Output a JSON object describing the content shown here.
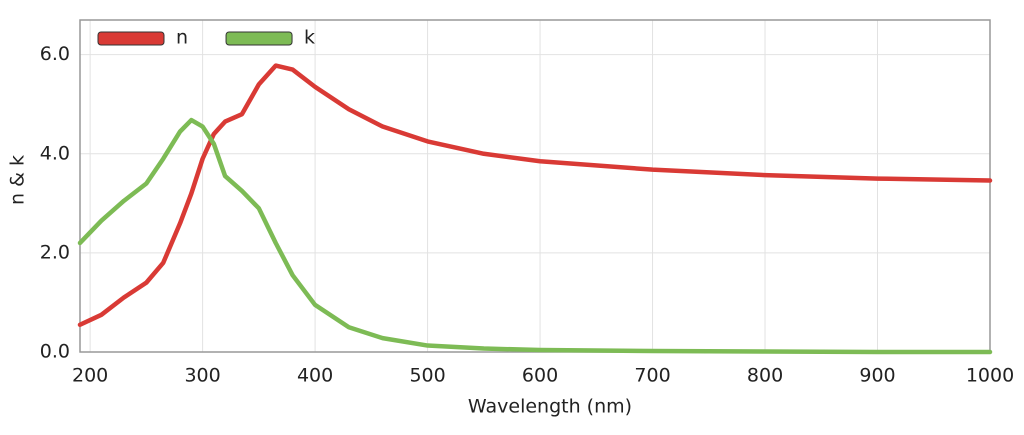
{
  "chart_data": {
    "type": "line",
    "x_label": "Wavelength (nm)",
    "y_label": "n & k",
    "x": [
      191,
      210,
      230,
      250,
      265,
      280,
      290,
      300,
      310,
      320,
      335,
      350,
      365,
      380,
      400,
      430,
      460,
      500,
      550,
      600,
      700,
      800,
      900,
      1000
    ],
    "series": [
      {
        "name": "n",
        "color": "#d93a35",
        "values": [
          0.55,
          0.75,
          1.1,
          1.4,
          1.8,
          2.6,
          3.2,
          3.9,
          4.4,
          4.65,
          4.8,
          5.4,
          5.78,
          5.7,
          5.35,
          4.9,
          4.55,
          4.25,
          4.0,
          3.85,
          3.68,
          3.57,
          3.5,
          3.46
        ]
      },
      {
        "name": "k",
        "color": "#7dbb55",
        "values": [
          2.2,
          2.65,
          3.05,
          3.4,
          3.9,
          4.45,
          4.68,
          4.55,
          4.2,
          3.55,
          3.25,
          2.9,
          2.2,
          1.55,
          0.95,
          0.5,
          0.28,
          0.13,
          0.07,
          0.04,
          0.02,
          0.01,
          0.0,
          0.0
        ]
      }
    ],
    "xlim": [
      191,
      1000
    ],
    "ylim": [
      0,
      6.7
    ],
    "xticks": [
      200,
      300,
      400,
      500,
      600,
      700,
      800,
      900,
      1000
    ],
    "yticks": [
      {
        "value": 0,
        "label": "0.0"
      },
      {
        "value": 2,
        "label": "2.0"
      },
      {
        "value": 4,
        "label": "4.0"
      },
      {
        "value": 6,
        "label": "6.0"
      }
    ],
    "grid": true,
    "legend": "top-left"
  }
}
